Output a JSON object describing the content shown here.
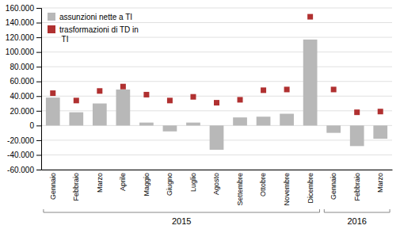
{
  "chart_data": {
    "type": "bar",
    "categories": [
      "Gennaio",
      "Febbraio",
      "Marzo",
      "Aprile",
      "Maggio",
      "Giugno",
      "Luglio",
      "Agosto",
      "Settembre",
      "Ottobre",
      "Novembre",
      "Dicembre",
      "Gennaio",
      "Febbraio",
      "Marzo"
    ],
    "series": [
      {
        "name": "assunzioni nette a TI",
        "type": "bar",
        "color": "#b8b8b8",
        "values": [
          38000,
          18000,
          30000,
          49000,
          4000,
          -8000,
          4000,
          -33000,
          11000,
          12000,
          16000,
          117000,
          -10000,
          -28000,
          -18000
        ]
      },
      {
        "name": "trasformazioni di TD in\n TI",
        "type": "scatter",
        "marker": "square",
        "color": "#b03030",
        "values": [
          44000,
          34000,
          47000,
          53000,
          42000,
          34000,
          39000,
          31000,
          35000,
          48000,
          49000,
          148000,
          49000,
          18000,
          19000
        ]
      }
    ],
    "ylim": [
      -60000,
      160000
    ],
    "yticks": [
      {
        "value": -60000,
        "label": "-60.000"
      },
      {
        "value": -40000,
        "label": "-40.000"
      },
      {
        "value": -20000,
        "label": "-20.000"
      },
      0,
      {
        "value": 20000,
        "label": "20.000"
      },
      {
        "value": 40000,
        "label": "40.000"
      },
      {
        "value": 60000,
        "label": "60.000"
      },
      {
        "value": 80000,
        "label": "80.000"
      },
      {
        "value": 100000,
        "label": "100.000"
      },
      {
        "value": 120000,
        "label": "120.000"
      },
      {
        "value": 140000,
        "label": "140.000"
      },
      {
        "value": 160000,
        "label": "160.000"
      }
    ],
    "annotations": [
      {
        "text": "2015",
        "x": [
          0,
          11
        ]
      },
      {
        "text": "2016",
        "x": [
          12,
          14
        ]
      }
    ],
    "grid": true,
    "legend": "upper left"
  }
}
